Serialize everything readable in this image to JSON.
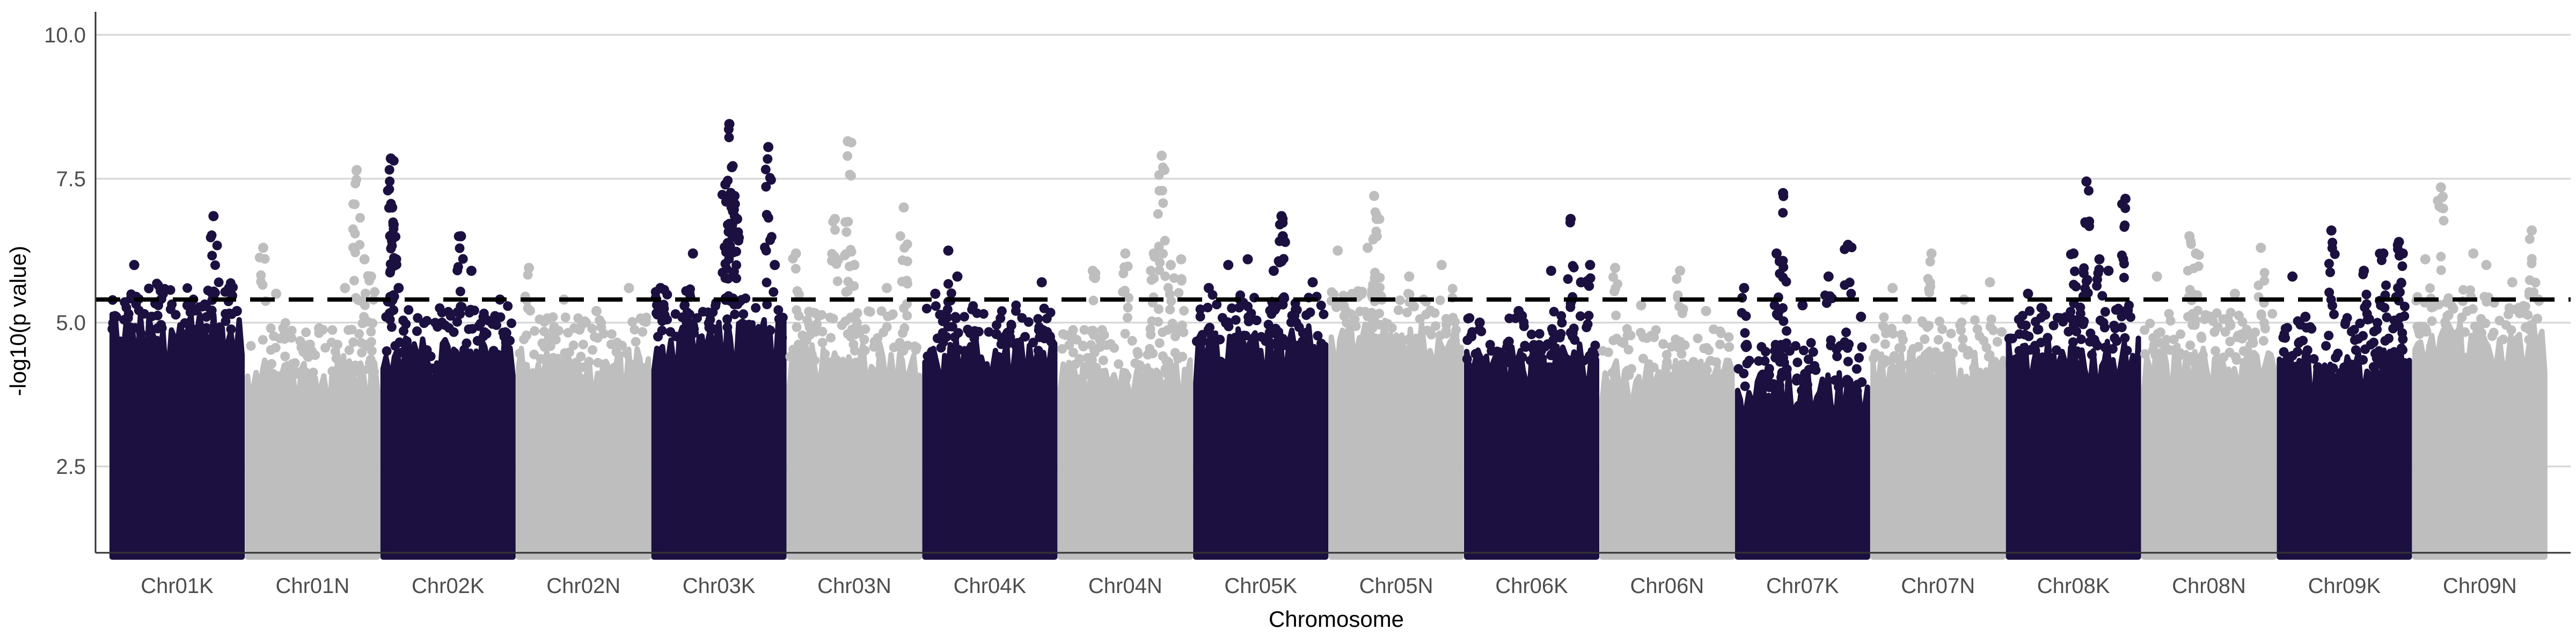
{
  "chart_data": {
    "type": "scatter",
    "title": "",
    "xlabel": "Chromosome",
    "ylabel": "-log10(p value)",
    "ylim": [
      1,
      10.4
    ],
    "yticks": [
      2.5,
      5.0,
      7.5,
      10.0
    ],
    "ytick_labels": [
      "2.5",
      "5.0",
      "7.5",
      "10.0"
    ],
    "threshold": 5.4,
    "grid": "horizontal major lines",
    "legend": "none",
    "colors": {
      "dark": "#1b1040",
      "light": "#bebebe",
      "threshold": "#000000",
      "grid": "#d4d4d4",
      "axis": "#333333"
    },
    "categories": [
      "Chr01K",
      "Chr01N",
      "Chr02K",
      "Chr02N",
      "Chr03K",
      "Chr03N",
      "Chr04K",
      "Chr04N",
      "Chr05K",
      "Chr05N",
      "Chr06K",
      "Chr06N",
      "Chr07K",
      "Chr07N",
      "Chr08K",
      "Chr08N",
      "Chr09K",
      "Chr09N"
    ],
    "series": [
      {
        "category": "Chr01K",
        "color": "dark",
        "max": 6.85,
        "bulk": 5.4,
        "top_points": [
          [
            0.03,
            5.1
          ],
          [
            0.17,
            6.0
          ],
          [
            0.35,
            4.9
          ],
          [
            0.58,
            5.3
          ],
          [
            0.78,
            6.85
          ],
          [
            0.9,
            5.6
          ],
          [
            0.96,
            5.2
          ]
        ]
      },
      {
        "category": "Chr01N",
        "color": "light",
        "max": 7.65,
        "bulk": 4.7,
        "top_points": [
          [
            0.12,
            6.3
          ],
          [
            0.22,
            5.5
          ],
          [
            0.55,
            4.9
          ],
          [
            0.75,
            5.6
          ],
          [
            0.84,
            7.65
          ],
          [
            0.9,
            6.1
          ],
          [
            0.95,
            5.8
          ]
        ]
      },
      {
        "category": "Chr02K",
        "color": "dark",
        "max": 7.85,
        "bulk": 5.0,
        "top_points": [
          [
            0.06,
            7.85
          ],
          [
            0.07,
            7.0
          ],
          [
            0.08,
            6.7
          ],
          [
            0.12,
            5.6
          ],
          [
            0.38,
            4.2
          ],
          [
            0.6,
            6.5
          ],
          [
            0.68,
            5.9
          ],
          [
            0.9,
            5.4
          ]
        ]
      },
      {
        "category": "Chr02N",
        "color": "light",
        "max": 5.95,
        "bulk": 4.8,
        "top_points": [
          [
            0.08,
            5.95
          ],
          [
            0.35,
            5.4
          ],
          [
            0.6,
            5.2
          ],
          [
            0.85,
            5.6
          ]
        ]
      },
      {
        "category": "Chr03K",
        "color": "dark",
        "max": 8.45,
        "bulk": 5.3,
        "top_points": [
          [
            0.05,
            5.6
          ],
          [
            0.3,
            6.2
          ],
          [
            0.55,
            7.4
          ],
          [
            0.58,
            8.45
          ],
          [
            0.6,
            7.7
          ],
          [
            0.62,
            7.2
          ],
          [
            0.64,
            6.8
          ],
          [
            0.88,
            8.05
          ],
          [
            0.93,
            6.0
          ]
        ]
      },
      {
        "category": "Chr03N",
        "color": "light",
        "max": 8.15,
        "bulk": 4.9,
        "top_points": [
          [
            0.05,
            6.2
          ],
          [
            0.35,
            6.8
          ],
          [
            0.45,
            8.15
          ],
          [
            0.5,
            6.0
          ],
          [
            0.75,
            5.6
          ],
          [
            0.88,
            7.0
          ]
        ]
      },
      {
        "category": "Chr04K",
        "color": "dark",
        "max": 6.25,
        "bulk": 5.0,
        "top_points": [
          [
            0.08,
            5.5
          ],
          [
            0.18,
            6.25
          ],
          [
            0.25,
            5.8
          ],
          [
            0.55,
            4.8
          ],
          [
            0.9,
            5.7
          ]
        ]
      },
      {
        "category": "Chr04N",
        "color": "light",
        "max": 7.9,
        "bulk": 4.6,
        "top_points": [
          [
            0.25,
            5.9
          ],
          [
            0.5,
            6.2
          ],
          [
            0.72,
            6.2
          ],
          [
            0.78,
            7.9
          ],
          [
            0.85,
            6.0
          ],
          [
            0.93,
            6.1
          ]
        ]
      },
      {
        "category": "Chr05K",
        "color": "dark",
        "max": 6.85,
        "bulk": 5.2,
        "top_points": [
          [
            0.1,
            5.6
          ],
          [
            0.25,
            6.0
          ],
          [
            0.4,
            6.1
          ],
          [
            0.6,
            5.9
          ],
          [
            0.66,
            6.85
          ],
          [
            0.67,
            6.5
          ],
          [
            0.9,
            5.7
          ]
        ]
      },
      {
        "category": "Chr05N",
        "color": "light",
        "max": 7.2,
        "bulk": 5.3,
        "top_points": [
          [
            0.05,
            6.25
          ],
          [
            0.28,
            6.3
          ],
          [
            0.33,
            7.2
          ],
          [
            0.35,
            6.8
          ],
          [
            0.6,
            5.8
          ],
          [
            0.85,
            6.0
          ]
        ]
      },
      {
        "category": "Chr06K",
        "color": "dark",
        "max": 6.8,
        "bulk": 4.9,
        "top_points": [
          [
            0.1,
            5.0
          ],
          [
            0.4,
            5.2
          ],
          [
            0.65,
            5.9
          ],
          [
            0.8,
            6.8
          ],
          [
            0.88,
            5.7
          ],
          [
            0.95,
            6.0
          ]
        ]
      },
      {
        "category": "Chr06N",
        "color": "light",
        "max": 5.95,
        "bulk": 4.6,
        "top_points": [
          [
            0.1,
            5.95
          ],
          [
            0.3,
            5.3
          ],
          [
            0.6,
            5.9
          ],
          [
            0.8,
            5.2
          ]
        ]
      },
      {
        "category": "Chr07K",
        "color": "dark",
        "max": 7.25,
        "bulk": 4.4,
        "top_points": [
          [
            0.05,
            5.6
          ],
          [
            0.3,
            6.2
          ],
          [
            0.35,
            7.25
          ],
          [
            0.5,
            5.3
          ],
          [
            0.7,
            5.8
          ],
          [
            0.85,
            6.35
          ],
          [
            0.95,
            5.1
          ]
        ]
      },
      {
        "category": "Chr07N",
        "color": "light",
        "max": 6.2,
        "bulk": 4.8,
        "top_points": [
          [
            0.15,
            5.6
          ],
          [
            0.45,
            6.2
          ],
          [
            0.7,
            5.4
          ],
          [
            0.9,
            5.7
          ]
        ]
      },
      {
        "category": "Chr08K",
        "color": "dark",
        "max": 7.45,
        "bulk": 5.0,
        "top_points": [
          [
            0.15,
            5.5
          ],
          [
            0.5,
            6.2
          ],
          [
            0.6,
            7.45
          ],
          [
            0.7,
            6.1
          ],
          [
            0.77,
            5.9
          ],
          [
            0.9,
            7.15
          ]
        ]
      },
      {
        "category": "Chr08N",
        "color": "light",
        "max": 6.5,
        "bulk": 4.9,
        "top_points": [
          [
            0.1,
            5.8
          ],
          [
            0.35,
            6.5
          ],
          [
            0.4,
            6.2
          ],
          [
            0.7,
            5.5
          ],
          [
            0.9,
            6.3
          ]
        ]
      },
      {
        "category": "Chr09K",
        "color": "dark",
        "max": 6.6,
        "bulk": 4.8,
        "top_points": [
          [
            0.1,
            5.8
          ],
          [
            0.2,
            5.1
          ],
          [
            0.4,
            6.6
          ],
          [
            0.65,
            5.9
          ],
          [
            0.8,
            6.2
          ],
          [
            0.92,
            6.4
          ],
          [
            0.95,
            6.2
          ]
        ]
      },
      {
        "category": "Chr09N",
        "color": "light",
        "max": 7.35,
        "bulk": 5.3,
        "top_points": [
          [
            0.08,
            6.1
          ],
          [
            0.2,
            7.35
          ],
          [
            0.45,
            6.2
          ],
          [
            0.55,
            6.0
          ],
          [
            0.75,
            5.7
          ],
          [
            0.9,
            6.6
          ],
          [
            0.95,
            5.4
          ]
        ]
      }
    ]
  }
}
